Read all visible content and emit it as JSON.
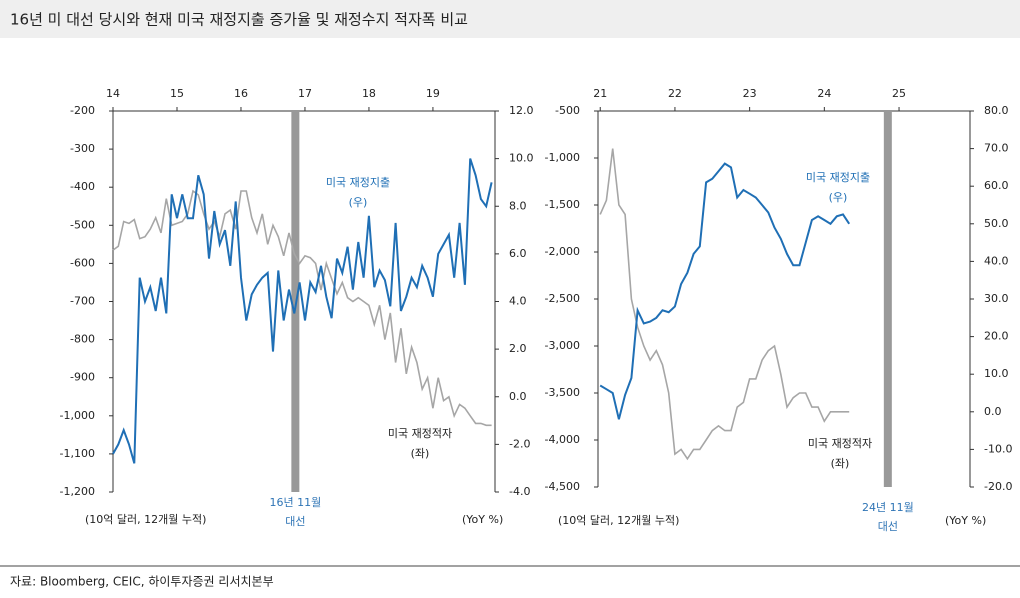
{
  "title": "16년 미 대선 당시와 현재 미국 재정지출 증가율 및 재정수지 적자폭 비교",
  "source": "자료: Bloomberg, CEIC, 하이투자증권 리서치본부",
  "chart_data": [
    {
      "type": "line",
      "xlim": [
        2014,
        2019.97
      ],
      "xticks": [
        {
          "value": 2014,
          "label": "14"
        },
        {
          "value": 2015,
          "label": "15"
        },
        {
          "value": 2016,
          "label": "16"
        },
        {
          "value": 2017,
          "label": "17"
        },
        {
          "value": 2018,
          "label": "18"
        },
        {
          "value": 2019,
          "label": "19"
        }
      ],
      "ylim": [
        -1200,
        -200
      ],
      "y_inverted": true,
      "yticks": [
        -200,
        -300,
        -400,
        -500,
        -600,
        -700,
        -800,
        -900,
        {
          "value": -1000,
          "label": "-1,000"
        },
        {
          "value": -1100,
          "label": "-1,100"
        },
        {
          "value": -1200,
          "label": "-1,200"
        }
      ],
      "y2lim": [
        -4,
        12
      ],
      "y2ticks": [
        {
          "value": 12,
          "label": "12.0"
        },
        {
          "value": 10,
          "label": "10.0"
        },
        {
          "value": 8,
          "label": "8.0"
        },
        {
          "value": 6,
          "label": "6.0"
        },
        {
          "value": 4,
          "label": "4.0"
        },
        {
          "value": 2,
          "label": "2.0"
        },
        {
          "value": 0,
          "label": "0.0"
        },
        {
          "value": -2,
          "label": "-2.0"
        },
        {
          "value": -4,
          "label": "-4.0"
        }
      ],
      "ylabel": "(10억 달러, 12개월 누적)",
      "y2label": "(YoY %)",
      "x": [
        2014,
        2014.083,
        2014.167,
        2014.25,
        2014.333,
        2014.417,
        2014.5,
        2014.583,
        2014.667,
        2014.75,
        2014.833,
        2014.917,
        2015,
        2015.083,
        2015.167,
        2015.25,
        2015.333,
        2015.417,
        2015.5,
        2015.583,
        2015.667,
        2015.75,
        2015.833,
        2015.917,
        2016,
        2016.083,
        2016.167,
        2016.25,
        2016.333,
        2016.417,
        2016.5,
        2016.583,
        2016.667,
        2016.75,
        2016.833,
        2016.917,
        2017,
        2017.083,
        2017.167,
        2017.25,
        2017.333,
        2017.417,
        2017.5,
        2017.583,
        2017.667,
        2017.75,
        2017.833,
        2017.917,
        2018,
        2018.083,
        2018.167,
        2018.25,
        2018.333,
        2018.417,
        2018.5,
        2018.583,
        2018.667,
        2018.75,
        2018.833,
        2018.917,
        2019,
        2019.083,
        2019.167,
        2019.25,
        2019.333,
        2019.417,
        2019.5,
        2019.583,
        2019.667,
        2019.75,
        2019.833,
        2019.917
      ],
      "series": [
        {
          "name": "미국 재정지출",
          "note": "(우)",
          "axis": "y2",
          "color": "#1f6fb5",
          "values": [
            -2.4,
            -2.0,
            -1.4,
            -2.0,
            -2.8,
            5.0,
            4.0,
            4.6,
            3.6,
            5.0,
            3.5,
            8.5,
            7.5,
            8.5,
            7.5,
            7.5,
            9.3,
            8.5,
            5.8,
            7.8,
            6.4,
            7.0,
            5.5,
            8.2,
            5.0,
            3.2,
            4.3,
            4.7,
            5.0,
            5.2,
            1.9,
            5.3,
            3.2,
            4.5,
            3.5,
            4.8,
            3.2,
            4.8,
            4.4,
            5.5,
            4.2,
            3.3,
            5.8,
            5.2,
            6.3,
            4.5,
            6.5,
            5.0,
            7.6,
            4.6,
            5.3,
            4.9,
            3.8,
            7.3,
            3.6,
            4.2,
            5.0,
            4.6,
            5.5,
            5.0,
            4.2,
            6.0,
            6.4,
            6.8,
            5.0,
            7.3,
            4.7,
            10.0,
            9.3,
            8.3,
            8.0,
            9.0
          ]
        },
        {
          "name": "미국 재정적자",
          "note": "(좌)",
          "axis": "y",
          "color": "#a6a6a6",
          "values": [
            -565,
            -555,
            -490,
            -495,
            -485,
            -535,
            -530,
            -510,
            -480,
            -520,
            -430,
            -500,
            -495,
            -490,
            -470,
            -410,
            -420,
            -470,
            -510,
            -490,
            -530,
            -470,
            -460,
            -510,
            -410,
            -410,
            -480,
            -520,
            -470,
            -550,
            -500,
            -530,
            -580,
            -520,
            -575,
            -600,
            -580,
            -585,
            -600,
            -670,
            -600,
            -640,
            -680,
            -650,
            -690,
            -700,
            -690,
            -700,
            -710,
            -760,
            -710,
            -800,
            -730,
            -860,
            -770,
            -890,
            -820,
            -860,
            -930,
            -900,
            -980,
            -900,
            -960,
            -950,
            -1000,
            -970,
            -980,
            -1000,
            -1020,
            -1020,
            -1025,
            -1025
          ]
        }
      ],
      "markers": [
        {
          "x": 2016.85,
          "lines": [
            "16년 11월",
            "대선"
          ]
        }
      ]
    },
    {
      "type": "line",
      "xlim": [
        2020.97,
        2025.95
      ],
      "xticks": [
        {
          "value": 2021,
          "label": "21"
        },
        {
          "value": 2022,
          "label": "22"
        },
        {
          "value": 2023,
          "label": "23"
        },
        {
          "value": 2024,
          "label": "24"
        },
        {
          "value": 2025,
          "label": "25"
        }
      ],
      "ylim": [
        -4500,
        -500
      ],
      "y_inverted": true,
      "yticks": [
        -500,
        {
          "value": -1000,
          "label": "-1,000"
        },
        {
          "value": -1500,
          "label": "-1,500"
        },
        {
          "value": -2000,
          "label": "-2,000"
        },
        {
          "value": -2500,
          "label": "-2,500"
        },
        {
          "value": -3000,
          "label": "-3,000"
        },
        {
          "value": -3500,
          "label": "-3,500"
        },
        {
          "value": -4000,
          "label": "-4,000"
        },
        {
          "value": -4500,
          "label": "-4,500"
        }
      ],
      "y2lim": [
        -20,
        80
      ],
      "y2ticks": [
        {
          "value": 80,
          "label": "80.0"
        },
        {
          "value": 70,
          "label": "70.0"
        },
        {
          "value": 60,
          "label": "60.0"
        },
        {
          "value": 50,
          "label": "50.0"
        },
        {
          "value": 40,
          "label": "40.0"
        },
        {
          "value": 30,
          "label": "30.0"
        },
        {
          "value": 20,
          "label": "20.0"
        },
        {
          "value": 10,
          "label": "10.0"
        },
        {
          "value": 0,
          "label": "0.0"
        },
        {
          "value": -10,
          "label": "-10.0"
        },
        {
          "value": -20,
          "label": "-20.0"
        }
      ],
      "ylabel": "(10억 달러, 12개월 누적)",
      "y2label": "(YoY %)",
      "x": [
        2021,
        2021.083,
        2021.167,
        2021.25,
        2021.333,
        2021.417,
        2021.5,
        2021.583,
        2021.667,
        2021.75,
        2021.833,
        2021.917,
        2022,
        2022.083,
        2022.167,
        2022.25,
        2022.333,
        2022.417,
        2022.5,
        2022.583,
        2022.667,
        2022.75,
        2022.833,
        2022.917,
        2023,
        2023.083,
        2023.167,
        2023.25,
        2023.333,
        2023.417,
        2023.5,
        2023.583,
        2023.667,
        2023.75,
        2023.833,
        2023.917,
        2024,
        2024.083,
        2024.167,
        2024.25,
        2024.333
      ],
      "series": [
        {
          "name": "미국 재정지출",
          "note": "(우)",
          "axis": "y2",
          "color": "#1f6fb5",
          "values": [
            7,
            6,
            5,
            -2,
            4.5,
            9,
            27,
            23.5,
            24,
            25,
            27,
            26.5,
            28,
            34,
            37,
            42,
            44,
            61,
            62,
            64,
            66,
            65,
            57,
            59,
            58,
            57,
            55,
            53,
            49,
            46,
            42,
            39,
            39,
            45,
            51,
            52,
            51,
            50,
            52,
            52.5,
            50
          ]
        },
        {
          "name": "미국 재정적자",
          "note": "(좌)",
          "axis": "y",
          "color": "#a6a6a6",
          "values": [
            -1600,
            -1450,
            -900,
            -1500,
            -1600,
            -2500,
            -2800,
            -3000,
            -3150,
            -3050,
            -3200,
            -3500,
            -4150,
            -4100,
            -4200,
            -4100,
            -4100,
            -4000,
            -3900,
            -3850,
            -3900,
            -3900,
            -3650,
            -3600,
            -3350,
            -3350,
            -3150,
            -3050,
            -3000,
            -3300,
            -3650,
            -3550,
            -3500,
            -3500,
            -3650,
            -3650,
            -3800,
            -3700,
            -3700,
            -3700,
            -3700
          ]
        }
      ],
      "markers": [
        {
          "x": 2024.85,
          "lines": [
            "24년 11월",
            "대선"
          ]
        }
      ]
    }
  ]
}
